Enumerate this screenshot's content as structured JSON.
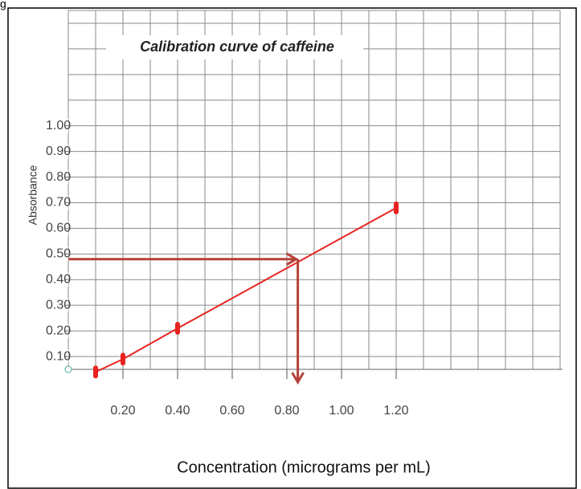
{
  "corner_text": "g",
  "chart_data": {
    "type": "line",
    "title": "Calibration curve of caffeine",
    "x_label": "Concentration (micrograms per mL)",
    "y_label": "Absorbance",
    "series": [
      {
        "name": null,
        "color": "#e8231f",
        "x": [
          0.1,
          0.2,
          0.4,
          1.2
        ],
        "values": [
          0.04,
          0.09,
          0.21,
          0.68
        ]
      }
    ],
    "annotation": {
      "x": 0.84,
      "y": 0.48,
      "color": "#b5413a"
    },
    "xlim": [
      0,
      1.8
    ],
    "ylim": [
      0.05,
      1.45
    ],
    "xticks": [
      {
        "value": 0.2,
        "label": "0.20"
      },
      {
        "value": 0.4,
        "label": "0.40"
      },
      {
        "value": 0.6,
        "label": "0.60"
      },
      {
        "value": 0.8,
        "label": "0.80"
      },
      {
        "value": 1.0,
        "label": "1.00"
      },
      {
        "value": 1.2,
        "label": "1.20"
      }
    ],
    "yticks": [
      {
        "value": 0.1,
        "label": "0.10"
      },
      {
        "value": 0.2,
        "label": "0.20"
      },
      {
        "value": 0.3,
        "label": "0.30"
      },
      {
        "value": 0.4,
        "label": "0.40"
      },
      {
        "value": 0.5,
        "label": "0.50"
      },
      {
        "value": 0.6,
        "label": "0.60"
      },
      {
        "value": 0.7,
        "label": "0.70"
      },
      {
        "value": 0.8,
        "label": "0.80"
      },
      {
        "value": 0.9,
        "label": "0.90"
      },
      {
        "value": 1.0,
        "label": "1.00"
      }
    ],
    "xgrid": [
      0.1,
      0.2,
      0.3,
      0.4,
      0.5,
      0.6,
      0.7,
      0.8,
      0.9,
      1.0,
      1.1,
      1.2,
      1.3,
      1.4,
      1.5,
      1.6,
      1.7,
      1.8
    ],
    "ygrid": [
      0.1,
      0.2,
      0.3,
      0.4,
      0.5,
      0.6,
      0.7,
      0.8,
      0.9,
      1.0,
      1.1,
      1.2,
      1.3,
      1.4
    ],
    "grid": true
  }
}
